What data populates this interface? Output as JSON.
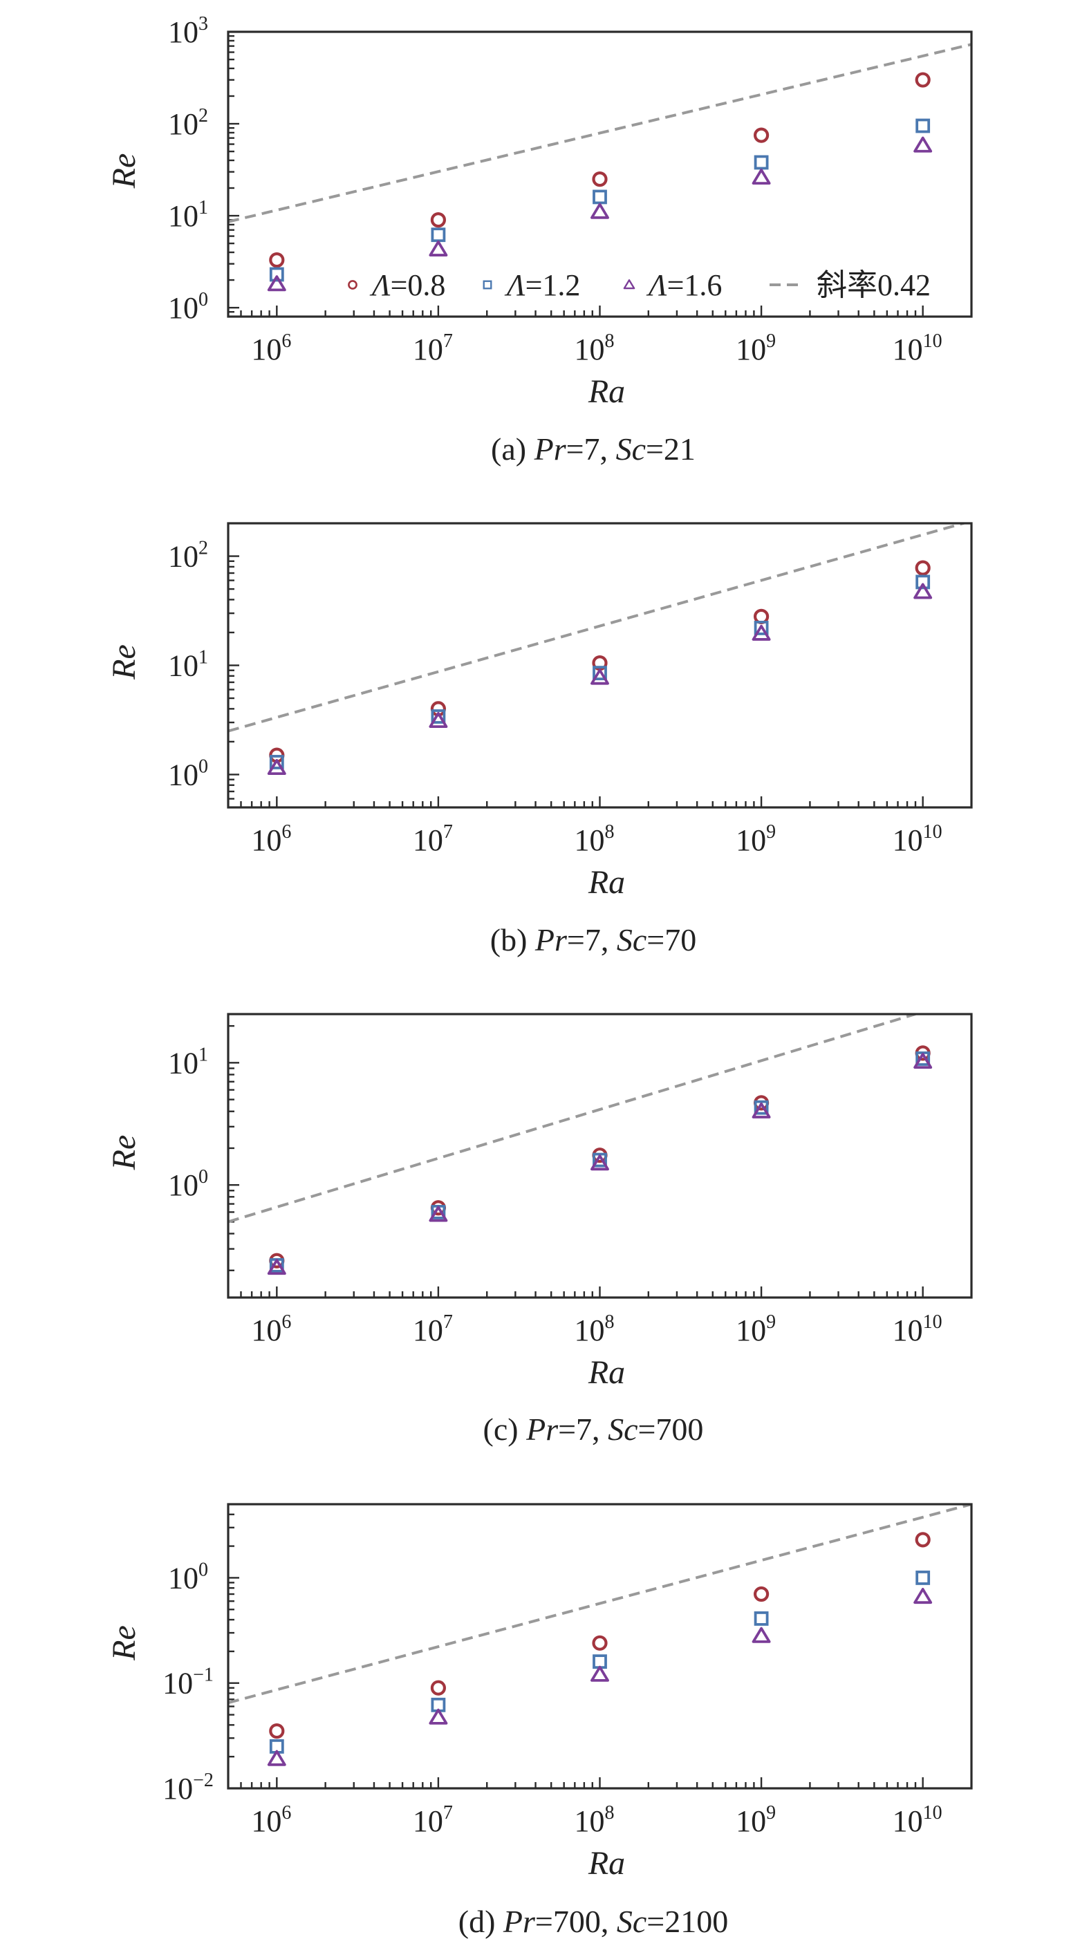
{
  "legend": {
    "entries": [
      {
        "symbol": "circle",
        "label": "Λ=0.8",
        "color": "#a3353e"
      },
      {
        "symbol": "square",
        "label": "Λ=1.2",
        "color": "#4a78b0"
      },
      {
        "symbol": "triangle",
        "label": "Λ=1.6",
        "color": "#7b3d98"
      },
      {
        "symbol": "dashed-line",
        "label": "斜率0.42",
        "color": "#999999"
      }
    ]
  },
  "chart_data": [
    {
      "type": "scatter",
      "caption_parts": [
        "(a) ",
        "Pr",
        "=7, ",
        "Sc",
        "=21"
      ],
      "xlabel": "Ra",
      "ylabel": "Re",
      "xscale": "log",
      "yscale": "log",
      "xlim": [
        500000,
        20000000000
      ],
      "ylim": [
        0.8,
        1000
      ],
      "x_ticks": [
        {
          "base": "10",
          "exp": "6"
        },
        {
          "base": "10",
          "exp": "7"
        },
        {
          "base": "10",
          "exp": "8"
        },
        {
          "base": "10",
          "exp": "9"
        },
        {
          "base": "10",
          "exp": "10"
        }
      ],
      "y_ticks": [
        {
          "base": "10",
          "exp": "0"
        },
        {
          "base": "10",
          "exp": "1"
        },
        {
          "base": "10",
          "exp": "2"
        },
        {
          "base": "10",
          "exp": "3"
        }
      ],
      "legend_position": "bottom-right",
      "x": [
        1000000,
        10000000,
        100000000,
        1000000000,
        10000000000
      ],
      "series": [
        {
          "name": "Λ=0.8",
          "marker": "circle",
          "color": "#a3353e",
          "values": [
            3.3,
            9.0,
            25,
            75,
            300
          ]
        },
        {
          "name": "Λ=1.2",
          "marker": "square",
          "color": "#4a78b0",
          "values": [
            2.3,
            6.2,
            16,
            38,
            95
          ]
        },
        {
          "name": "Λ=1.6",
          "marker": "triangle",
          "color": "#7b3d98",
          "values": [
            1.8,
            4.3,
            11,
            26,
            58
          ]
        }
      ],
      "fit": {
        "name": "斜率0.42",
        "slope": 0.42,
        "x": [
          500000,
          20000000000
        ],
        "y": [
          8.6,
          730
        ]
      }
    },
    {
      "type": "scatter",
      "caption_parts": [
        "(b) ",
        "Pr",
        "=7, ",
        "Sc",
        "=70"
      ],
      "xlabel": "Ra",
      "ylabel": "Re",
      "xscale": "log",
      "yscale": "log",
      "xlim": [
        500000,
        20000000000
      ],
      "ylim": [
        0.5,
        200
      ],
      "x_ticks": [
        {
          "base": "10",
          "exp": "6"
        },
        {
          "base": "10",
          "exp": "7"
        },
        {
          "base": "10",
          "exp": "8"
        },
        {
          "base": "10",
          "exp": "9"
        },
        {
          "base": "10",
          "exp": "10"
        }
      ],
      "y_ticks": [
        {
          "base": "10",
          "exp": "0"
        },
        {
          "base": "10",
          "exp": "1"
        },
        {
          "base": "10",
          "exp": "2"
        }
      ],
      "x": [
        1000000,
        10000000,
        100000000,
        1000000000,
        10000000000
      ],
      "series": [
        {
          "name": "Λ=0.8",
          "marker": "circle",
          "color": "#a3353e",
          "values": [
            1.5,
            4.0,
            10.5,
            28,
            78
          ]
        },
        {
          "name": "Λ=1.2",
          "marker": "square",
          "color": "#4a78b0",
          "values": [
            1.3,
            3.4,
            8.5,
            22,
            58
          ]
        },
        {
          "name": "Λ=1.6",
          "marker": "triangle",
          "color": "#7b3d98",
          "values": [
            1.15,
            3.1,
            7.7,
            19.5,
            47
          ]
        }
      ],
      "fit": {
        "name": "斜率0.42",
        "slope": 0.42,
        "x": [
          500000,
          20000000000
        ],
        "y": [
          2.5,
          210
        ]
      }
    },
    {
      "type": "scatter",
      "caption_parts": [
        "(c) ",
        "Pr",
        "=7, ",
        "Sc",
        "=700"
      ],
      "xlabel": "Ra",
      "ylabel": "Re",
      "xscale": "log",
      "yscale": "log",
      "xlim": [
        500000,
        20000000000
      ],
      "ylim": [
        0.12,
        25
      ],
      "x_ticks": [
        {
          "base": "10",
          "exp": "6"
        },
        {
          "base": "10",
          "exp": "7"
        },
        {
          "base": "10",
          "exp": "8"
        },
        {
          "base": "10",
          "exp": "9"
        },
        {
          "base": "10",
          "exp": "10"
        }
      ],
      "y_ticks": [
        {
          "base": "10",
          "exp": "0"
        },
        {
          "base": "10",
          "exp": "1"
        }
      ],
      "x": [
        1000000,
        10000000,
        100000000,
        1000000000,
        10000000000
      ],
      "series": [
        {
          "name": "Λ=0.8",
          "marker": "circle",
          "color": "#a3353e",
          "values": [
            0.24,
            0.65,
            1.75,
            4.7,
            12
          ]
        },
        {
          "name": "Λ=1.2",
          "marker": "square",
          "color": "#4a78b0",
          "values": [
            0.22,
            0.6,
            1.6,
            4.3,
            10.8
          ]
        },
        {
          "name": "Λ=1.6",
          "marker": "triangle",
          "color": "#7b3d98",
          "values": [
            0.21,
            0.57,
            1.5,
            4.0,
            10.2
          ]
        }
      ],
      "fit": {
        "name": "斜率0.42",
        "slope": 0.42,
        "x": [
          500000,
          9000000000
        ],
        "y": [
          0.5,
          25
        ]
      }
    },
    {
      "type": "scatter",
      "caption_parts": [
        "(d) ",
        "Pr",
        "=700, ",
        "Sc",
        "=2100"
      ],
      "xlabel": "Ra",
      "ylabel": "Re",
      "xscale": "log",
      "yscale": "log",
      "xlim": [
        500000,
        20000000000
      ],
      "ylim": [
        0.01,
        5
      ],
      "x_ticks": [
        {
          "base": "10",
          "exp": "6"
        },
        {
          "base": "10",
          "exp": "7"
        },
        {
          "base": "10",
          "exp": "8"
        },
        {
          "base": "10",
          "exp": "9"
        },
        {
          "base": "10",
          "exp": "10"
        }
      ],
      "y_ticks": [
        {
          "base": "10",
          "exp": "−2"
        },
        {
          "base": "10",
          "exp": "−1"
        },
        {
          "base": "10",
          "exp": "0"
        }
      ],
      "x": [
        1000000,
        10000000,
        100000000,
        1000000000,
        10000000000
      ],
      "series": [
        {
          "name": "Λ=0.8",
          "marker": "circle",
          "color": "#a3353e",
          "values": [
            0.035,
            0.09,
            0.24,
            0.7,
            2.3
          ]
        },
        {
          "name": "Λ=1.2",
          "marker": "square",
          "color": "#4a78b0",
          "values": [
            0.025,
            0.062,
            0.16,
            0.41,
            1.0
          ]
        },
        {
          "name": "Λ=1.6",
          "marker": "triangle",
          "color": "#7b3d98",
          "values": [
            0.019,
            0.047,
            0.12,
            0.28,
            0.66
          ]
        }
      ],
      "fit": {
        "name": "斜率0.42",
        "slope": 0.42,
        "x": [
          500000,
          20000000000
        ],
        "y": [
          0.065,
          5
        ]
      }
    }
  ]
}
